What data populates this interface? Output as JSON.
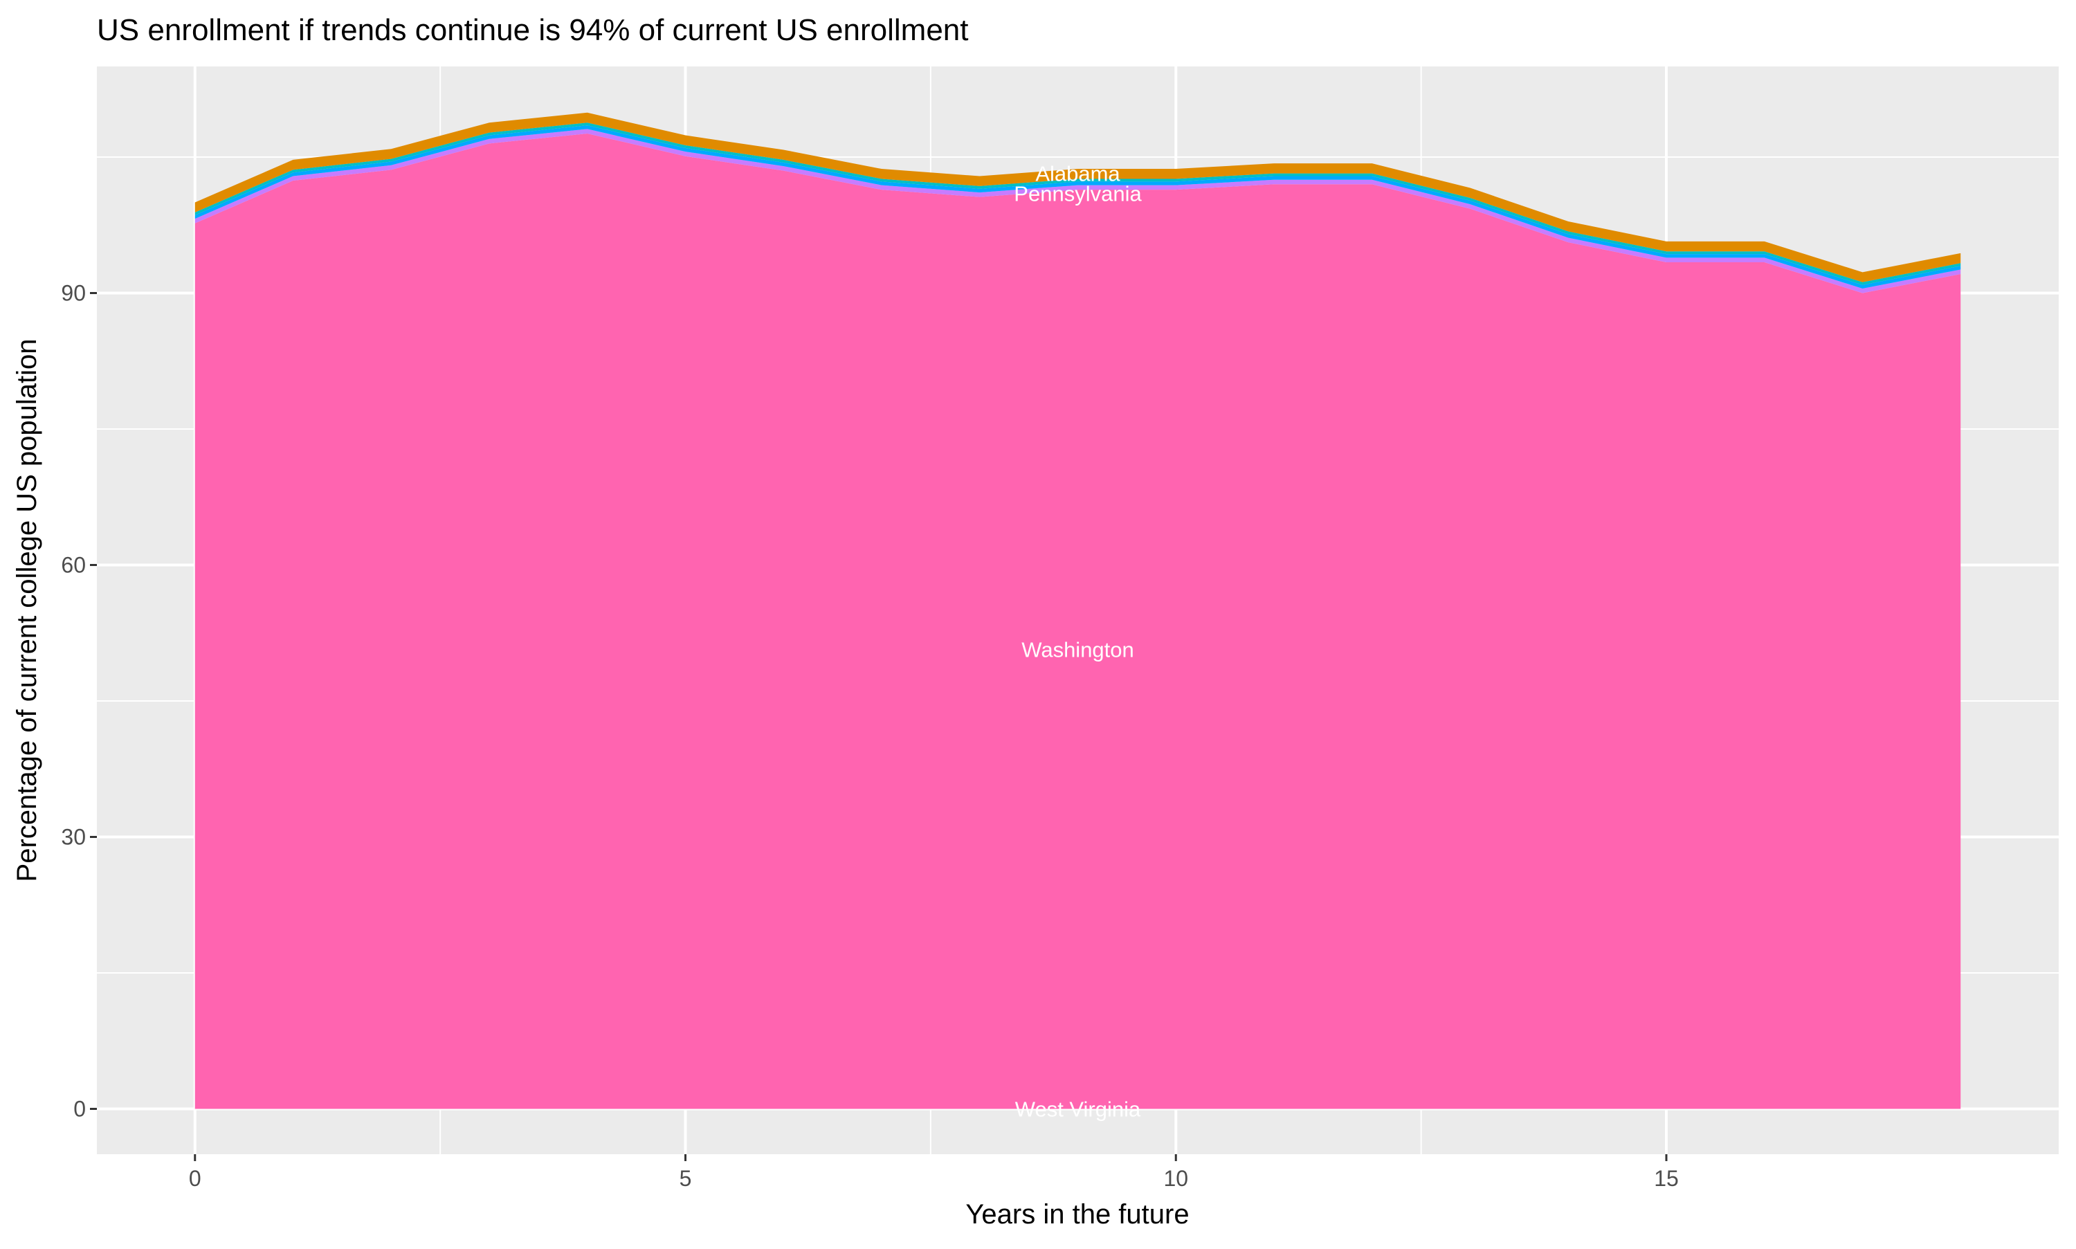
{
  "chart_data": {
    "type": "area",
    "stacked": true,
    "title": "US enrollment if trends continue is 94% of current US enrollment",
    "xlabel": "Years in the future",
    "ylabel": "Percentage of current college US population",
    "x": [
      0,
      1,
      2,
      3,
      4,
      5,
      6,
      7,
      8,
      9,
      10,
      11,
      12,
      13,
      14,
      15,
      16,
      17,
      18
    ],
    "xlim": [
      -1,
      19
    ],
    "ylim": [
      -5,
      115
    ],
    "xticks": [
      0,
      5,
      10,
      15
    ],
    "yticks": [
      0,
      30,
      60,
      90
    ],
    "grid": true,
    "legend": "none",
    "series": [
      {
        "name": "West Virginia",
        "color": "#F8766D",
        "values": [
          0,
          0,
          0,
          0,
          0,
          0,
          0,
          0,
          0,
          0,
          0,
          0,
          0,
          0,
          0,
          0,
          0,
          0,
          0
        ]
      },
      {
        "name": "Washington",
        "color": "#FF64B0",
        "values": [
          97.7,
          102.4,
          103.6,
          106.5,
          107.6,
          105.1,
          103.5,
          101.4,
          100.6,
          101.4,
          101.4,
          102.0,
          102.0,
          99.3,
          95.6,
          93.4,
          93.4,
          90.0,
          92.1
        ]
      },
      {
        "name": "Pennsylvania",
        "color": "#C77CFF",
        "values": [
          0.5,
          0.5,
          0.5,
          0.5,
          0.5,
          0.5,
          0.5,
          0.5,
          0.5,
          0.5,
          0.5,
          0.5,
          0.5,
          0.5,
          0.5,
          0.5,
          0.5,
          0.5,
          0.5
        ]
      },
      {
        "color": "#00A9FF",
        "values": [
          0.4,
          0.4,
          0.4,
          0.4,
          0.4,
          0.4,
          0.4,
          0.4,
          0.4,
          0.4,
          0.4,
          0.4,
          0.4,
          0.4,
          0.4,
          0.4,
          0.4,
          0.4,
          0.4
        ]
      },
      {
        "color": "#00BFC4",
        "values": [
          0.3,
          0.3,
          0.3,
          0.3,
          0.3,
          0.3,
          0.3,
          0.3,
          0.3,
          0.3,
          0.3,
          0.3,
          0.3,
          0.3,
          0.3,
          0.3,
          0.3,
          0.3,
          0.3
        ]
      },
      {
        "name": "Alabama",
        "color": "#E08B00",
        "values": [
          1.1,
          1.1,
          1.1,
          1.1,
          1.1,
          1.1,
          1.1,
          1.1,
          1.1,
          1.1,
          1.1,
          1.1,
          1.1,
          1.1,
          1.1,
          1.1,
          1.1,
          1.1,
          1.1
        ]
      }
    ],
    "labels": [
      {
        "text": "Alabama",
        "x": 9,
        "y": 103.2
      },
      {
        "text": "Pennsylvania",
        "x": 9,
        "y": 101.0
      },
      {
        "text": "Washington",
        "x": 9,
        "y": 50.7
      },
      {
        "text": "West Virginia",
        "x": 9,
        "y": 0
      }
    ]
  }
}
